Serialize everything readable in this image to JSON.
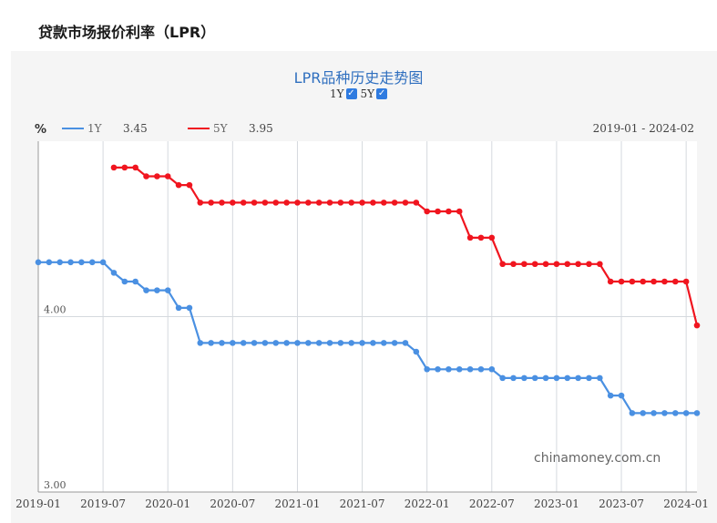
{
  "page": {
    "title": "贷款市场报价利率（LPR）"
  },
  "toggles": [
    {
      "label": "1Y",
      "checked": true
    },
    {
      "label": "5Y",
      "checked": true
    }
  ],
  "chart_data": {
    "type": "line",
    "title": "LPR品种历史走势图",
    "ylabel": "%",
    "date_range": "2019-01 - 2024-02",
    "watermark": "chinamoney.com.cn",
    "ylim": [
      3.0,
      5.0
    ],
    "yticks": [
      "4.00",
      "3.00"
    ],
    "xticks": [
      "2019-01",
      "2019-07",
      "2020-01",
      "2020-07",
      "2021-01",
      "2021-07",
      "2022-01",
      "2022-07",
      "2023-01",
      "2023-07",
      "2024-01"
    ],
    "grid": true,
    "legend_position": "top-left",
    "series": [
      {
        "name": "1Y",
        "latest": "3.45",
        "color": "#4a90e2",
        "points": [
          [
            "2019-01",
            4.31
          ],
          [
            "2019-02",
            4.31
          ],
          [
            "2019-03",
            4.31
          ],
          [
            "2019-04",
            4.31
          ],
          [
            "2019-05",
            4.31
          ],
          [
            "2019-06",
            4.31
          ],
          [
            "2019-07",
            4.31
          ],
          [
            "2019-08",
            4.25
          ],
          [
            "2019-09",
            4.2
          ],
          [
            "2019-10",
            4.2
          ],
          [
            "2019-11",
            4.15
          ],
          [
            "2019-12",
            4.15
          ],
          [
            "2020-01",
            4.15
          ],
          [
            "2020-02",
            4.05
          ],
          [
            "2020-03",
            4.05
          ],
          [
            "2020-04",
            3.85
          ],
          [
            "2020-05",
            3.85
          ],
          [
            "2020-06",
            3.85
          ],
          [
            "2020-07",
            3.85
          ],
          [
            "2020-08",
            3.85
          ],
          [
            "2020-09",
            3.85
          ],
          [
            "2020-10",
            3.85
          ],
          [
            "2020-11",
            3.85
          ],
          [
            "2020-12",
            3.85
          ],
          [
            "2021-01",
            3.85
          ],
          [
            "2021-02",
            3.85
          ],
          [
            "2021-03",
            3.85
          ],
          [
            "2021-04",
            3.85
          ],
          [
            "2021-05",
            3.85
          ],
          [
            "2021-06",
            3.85
          ],
          [
            "2021-07",
            3.85
          ],
          [
            "2021-08",
            3.85
          ],
          [
            "2021-09",
            3.85
          ],
          [
            "2021-10",
            3.85
          ],
          [
            "2021-11",
            3.85
          ],
          [
            "2021-12",
            3.8
          ],
          [
            "2022-01",
            3.7
          ],
          [
            "2022-02",
            3.7
          ],
          [
            "2022-03",
            3.7
          ],
          [
            "2022-04",
            3.7
          ],
          [
            "2022-05",
            3.7
          ],
          [
            "2022-06",
            3.7
          ],
          [
            "2022-07",
            3.7
          ],
          [
            "2022-08",
            3.65
          ],
          [
            "2022-09",
            3.65
          ],
          [
            "2022-10",
            3.65
          ],
          [
            "2022-11",
            3.65
          ],
          [
            "2022-12",
            3.65
          ],
          [
            "2023-01",
            3.65
          ],
          [
            "2023-02",
            3.65
          ],
          [
            "2023-03",
            3.65
          ],
          [
            "2023-04",
            3.65
          ],
          [
            "2023-05",
            3.65
          ],
          [
            "2023-06",
            3.55
          ],
          [
            "2023-07",
            3.55
          ],
          [
            "2023-08",
            3.45
          ],
          [
            "2023-09",
            3.45
          ],
          [
            "2023-10",
            3.45
          ],
          [
            "2023-11",
            3.45
          ],
          [
            "2023-12",
            3.45
          ],
          [
            "2024-01",
            3.45
          ],
          [
            "2024-02",
            3.45
          ]
        ]
      },
      {
        "name": "5Y",
        "latest": "3.95",
        "color": "#f0151f",
        "points": [
          [
            "2019-08",
            4.85
          ],
          [
            "2019-09",
            4.85
          ],
          [
            "2019-10",
            4.85
          ],
          [
            "2019-11",
            4.8
          ],
          [
            "2019-12",
            4.8
          ],
          [
            "2020-01",
            4.8
          ],
          [
            "2020-02",
            4.75
          ],
          [
            "2020-03",
            4.75
          ],
          [
            "2020-04",
            4.65
          ],
          [
            "2020-05",
            4.65
          ],
          [
            "2020-06",
            4.65
          ],
          [
            "2020-07",
            4.65
          ],
          [
            "2020-08",
            4.65
          ],
          [
            "2020-09",
            4.65
          ],
          [
            "2020-10",
            4.65
          ],
          [
            "2020-11",
            4.65
          ],
          [
            "2020-12",
            4.65
          ],
          [
            "2021-01",
            4.65
          ],
          [
            "2021-02",
            4.65
          ],
          [
            "2021-03",
            4.65
          ],
          [
            "2021-04",
            4.65
          ],
          [
            "2021-05",
            4.65
          ],
          [
            "2021-06",
            4.65
          ],
          [
            "2021-07",
            4.65
          ],
          [
            "2021-08",
            4.65
          ],
          [
            "2021-09",
            4.65
          ],
          [
            "2021-10",
            4.65
          ],
          [
            "2021-11",
            4.65
          ],
          [
            "2021-12",
            4.65
          ],
          [
            "2022-01",
            4.6
          ],
          [
            "2022-02",
            4.6
          ],
          [
            "2022-03",
            4.6
          ],
          [
            "2022-04",
            4.6
          ],
          [
            "2022-05",
            4.45
          ],
          [
            "2022-06",
            4.45
          ],
          [
            "2022-07",
            4.45
          ],
          [
            "2022-08",
            4.3
          ],
          [
            "2022-09",
            4.3
          ],
          [
            "2022-10",
            4.3
          ],
          [
            "2022-11",
            4.3
          ],
          [
            "2022-12",
            4.3
          ],
          [
            "2023-01",
            4.3
          ],
          [
            "2023-02",
            4.3
          ],
          [
            "2023-03",
            4.3
          ],
          [
            "2023-04",
            4.3
          ],
          [
            "2023-05",
            4.3
          ],
          [
            "2023-06",
            4.2
          ],
          [
            "2023-07",
            4.2
          ],
          [
            "2023-08",
            4.2
          ],
          [
            "2023-09",
            4.2
          ],
          [
            "2023-10",
            4.2
          ],
          [
            "2023-11",
            4.2
          ],
          [
            "2023-12",
            4.2
          ],
          [
            "2024-01",
            4.2
          ],
          [
            "2024-02",
            3.95
          ]
        ]
      }
    ]
  }
}
